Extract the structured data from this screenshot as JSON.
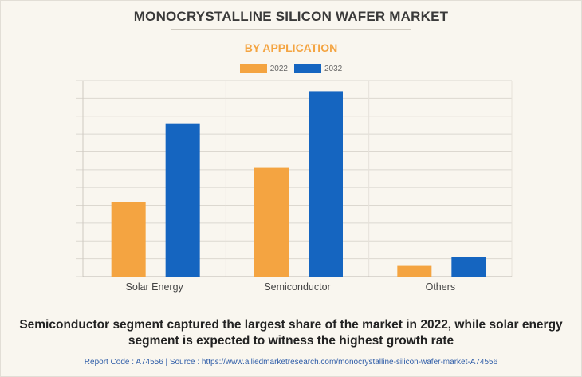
{
  "title": "MONOCRYSTALLINE SILICON WAFER MARKET",
  "subtitle": "BY APPLICATION",
  "chart_data": {
    "type": "bar",
    "categories": [
      "Solar Energy",
      "Semiconductor",
      "Others"
    ],
    "series": [
      {
        "name": "2022",
        "color": "#f4a441",
        "values": [
          4.2,
          6.1,
          0.6
        ]
      },
      {
        "name": "2032",
        "color": "#1565c0",
        "values": [
          8.6,
          10.4,
          1.1
        ]
      }
    ],
    "ylim": [
      0,
      11
    ],
    "grid": true,
    "y_tick_labels_shown": false,
    "legend": "top-center"
  },
  "caption": "Semiconductor segment captured the largest share of the market in 2022, while solar energy segment is expected to witness the highest growth rate",
  "footer": "Report Code : A74556  |  Source : https://www.alliedmarketresearch.com/monocrystalline-silicon-wafer-market-A74556"
}
